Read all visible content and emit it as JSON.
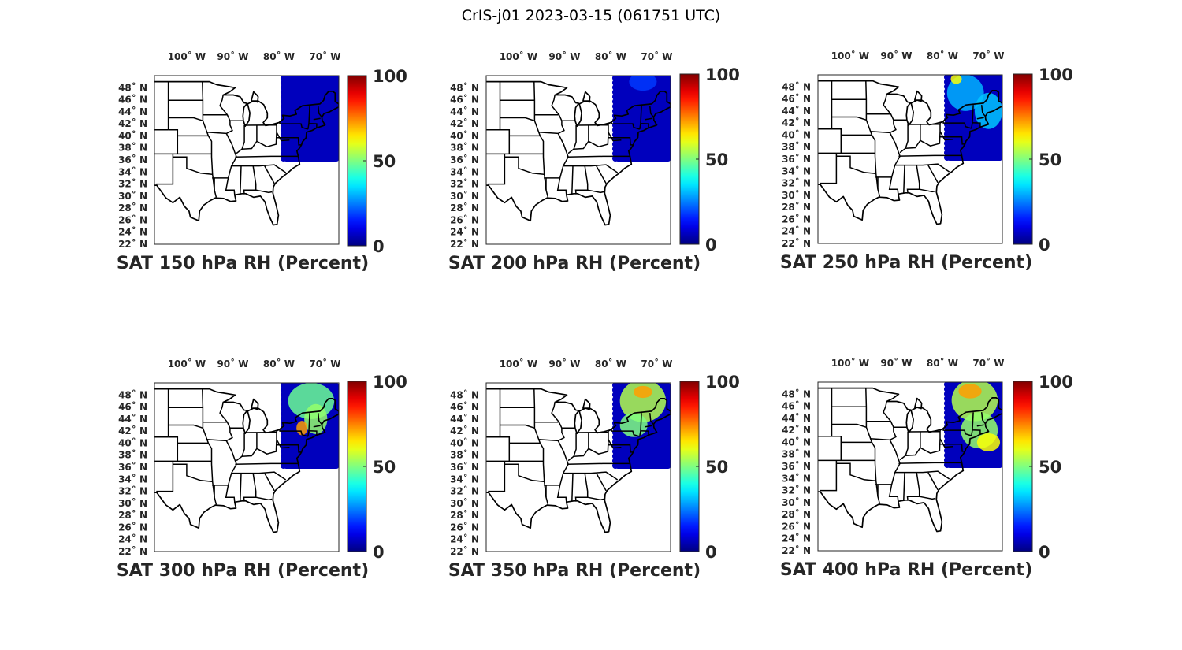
{
  "figure": {
    "title": "CrIS-j01 2023-03-15 (061751 UTC)"
  },
  "map_extent": {
    "lon_min": -107,
    "lon_max": -67,
    "lat_min": 22,
    "lat_max": 50
  },
  "lon_ticks": [
    {
      "lon": -100,
      "label": "100˚ W"
    },
    {
      "lon": -90,
      "label": "90˚ W"
    },
    {
      "lon": -80,
      "label": "80˚ W"
    },
    {
      "lon": -70,
      "label": "70˚ W"
    }
  ],
  "lat_ticks": [
    {
      "lat": 48,
      "label": "48˚ N"
    },
    {
      "lat": 46,
      "label": "46˚ N"
    },
    {
      "lat": 44,
      "label": "44˚ N"
    },
    {
      "lat": 42,
      "label": "42˚ N"
    },
    {
      "lat": 40,
      "label": "40˚ N"
    },
    {
      "lat": 38,
      "label": "38˚ N"
    },
    {
      "lat": 36,
      "label": "36˚ N"
    },
    {
      "lat": 34,
      "label": "34˚ N"
    },
    {
      "lat": 32,
      "label": "32˚ N"
    },
    {
      "lat": 30,
      "label": "30˚ N"
    },
    {
      "lat": 28,
      "label": "28˚ N"
    },
    {
      "lat": 26,
      "label": "26˚ N"
    },
    {
      "lat": 24,
      "label": "24˚ N"
    },
    {
      "lat": 22,
      "label": "22˚ N"
    }
  ],
  "colorbar": {
    "colormap": "jet",
    "range": [
      0,
      100
    ],
    "ticks": [
      {
        "value": 100,
        "label": "100"
      },
      {
        "value": 50,
        "label": "50"
      },
      {
        "value": 0,
        "label": "0"
      }
    ]
  },
  "panels": [
    {
      "title": "SAT 150 hPa RH (Percent)",
      "swath_lat_min": 36,
      "swath_lat_max": 50,
      "swath_lon_min": -80,
      "swath_lon_max": -67,
      "rh_blobs": []
    },
    {
      "title": "SAT 200 hPa RH (Percent)",
      "swath_lat_min": 36,
      "swath_lat_max": 50,
      "swath_lon_min": -80,
      "swath_lon_max": -67,
      "rh_blobs": [
        {
          "lon": -73,
          "lat": 49,
          "rlon": 3,
          "rlat": 1.5,
          "rh": 18
        }
      ]
    },
    {
      "title": "SAT 250 hPa RH (Percent)",
      "swath_lat_min": 36,
      "swath_lat_max": 50,
      "swath_lon_min": -80,
      "swath_lon_max": -67,
      "rh_blobs": [
        {
          "lon": -75,
          "lat": 47,
          "rlon": 4,
          "rlat": 3,
          "rh": 30
        },
        {
          "lon": -70,
          "lat": 44,
          "rlon": 3,
          "rlat": 3,
          "rh": 32
        },
        {
          "lon": -77,
          "lat": 49.3,
          "rlon": 1.2,
          "rlat": 0.8,
          "rh": 62
        }
      ]
    },
    {
      "title": "SAT 300 hPa RH (Percent)",
      "swath_lat_min": 36,
      "swath_lat_max": 50,
      "swath_lon_min": -80,
      "swath_lon_max": -67,
      "rh_blobs": [
        {
          "lon": -73,
          "lat": 47,
          "rlon": 5,
          "rlat": 3,
          "rh": 48
        },
        {
          "lon": -72,
          "lat": 44,
          "rlon": 2.5,
          "rlat": 2.5,
          "rh": 52
        },
        {
          "lon": -75,
          "lat": 42.5,
          "rlon": 1.2,
          "rlat": 1.2,
          "rh": 72
        }
      ]
    },
    {
      "title": "SAT 350 hPa RH (Percent)",
      "swath_lat_min": 36,
      "swath_lat_max": 50,
      "swath_lon_min": -80,
      "swath_lon_max": -67,
      "rh_blobs": [
        {
          "lon": -73,
          "lat": 47,
          "rlon": 5,
          "rlat": 3.5,
          "rh": 55
        },
        {
          "lon": -73,
          "lat": 48.5,
          "rlon": 2,
          "rlat": 1,
          "rh": 72
        },
        {
          "lon": -75,
          "lat": 43,
          "rlon": 3,
          "rlat": 2,
          "rh": 50
        }
      ]
    },
    {
      "title": "SAT 400 hPa RH (Percent)",
      "swath_lat_min": 36,
      "swath_lat_max": 50,
      "swath_lon_min": -80,
      "swath_lon_max": -67,
      "rh_blobs": [
        {
          "lon": -73,
          "lat": 47,
          "rlon": 5,
          "rlat": 3.5,
          "rh": 55
        },
        {
          "lon": -74,
          "lat": 48.5,
          "rlon": 2.5,
          "rlat": 1.2,
          "rh": 72
        },
        {
          "lon": -72,
          "lat": 42,
          "rlon": 4,
          "rlat": 3,
          "rh": 52
        },
        {
          "lon": -70,
          "lat": 40,
          "rlon": 2.5,
          "rlat": 1.5,
          "rh": 62
        }
      ]
    }
  ]
}
